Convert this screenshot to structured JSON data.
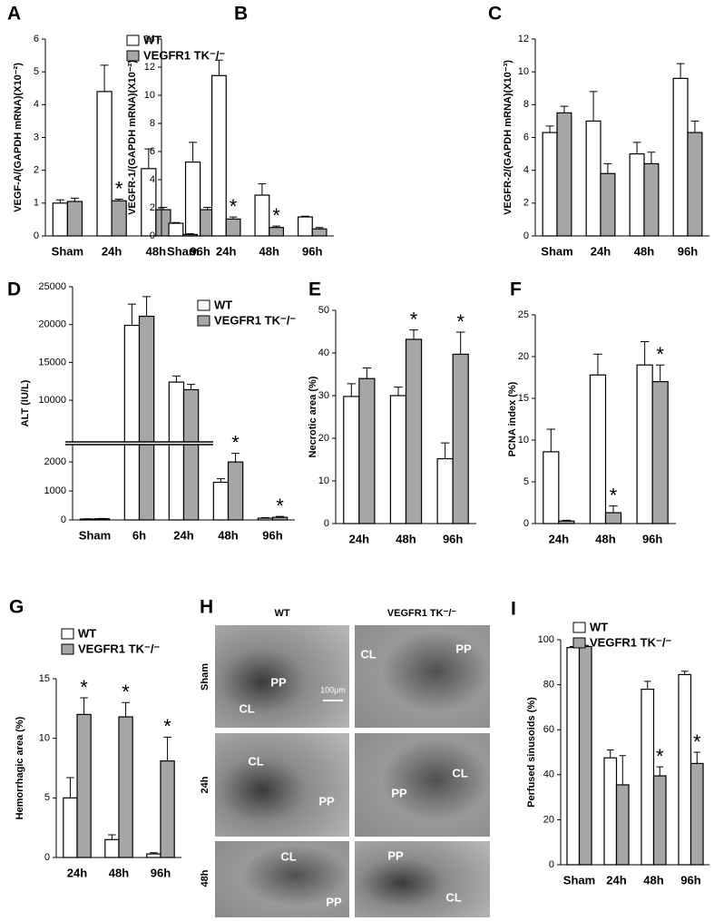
{
  "chart_data": [
    {
      "type": "bar",
      "panel": "A",
      "ylabel": "VEGF-A/(GAPDH mRNA)(X10⁻²)",
      "categories": [
        "Sham",
        "24h",
        "48h",
        "96h"
      ],
      "series": [
        {
          "name": "WT",
          "color": "#ffffff",
          "values": [
            1.0,
            4.4,
            2.05,
            2.25
          ],
          "errors": [
            0.1,
            0.8,
            0.6,
            0.6
          ],
          "significance": [
            null,
            null,
            null,
            null
          ]
        },
        {
          "name": "VEGFR1 TK⁻/⁻",
          "color": "#a6a6a6",
          "values": [
            1.05,
            1.07,
            0.8,
            0.8
          ],
          "errors": [
            0.1,
            0.05,
            0.07,
            0.07
          ],
          "significance": [
            null,
            "*",
            null,
            null
          ]
        }
      ],
      "ylim": [
        0,
        6
      ],
      "yticks": [
        0,
        1,
        2,
        3,
        4,
        5,
        6
      ],
      "legend": "upper-right"
    },
    {
      "type": "bar",
      "panel": "B",
      "ylabel": "VEGFR-1/(GAPDH mRNA)(X10⁻²)",
      "categories": [
        "Sham",
        "24h",
        "48h",
        "96h"
      ],
      "series": [
        {
          "color": "#ffffff",
          "values": [
            0.9,
            11.4,
            2.9,
            1.35
          ],
          "errors": [
            0.05,
            1.1,
            0.8,
            0.05
          ],
          "significance": [
            null,
            null,
            null,
            null
          ]
        },
        {
          "color": "#a6a6a6",
          "values": [
            0.1,
            1.2,
            0.6,
            0.5
          ],
          "errors": [
            0.05,
            0.15,
            0.1,
            0.1
          ],
          "significance": [
            null,
            "*",
            "*",
            null
          ]
        }
      ],
      "ylim": [
        0,
        14
      ],
      "yticks": [
        0,
        2,
        4,
        6,
        8,
        10,
        12,
        14
      ]
    },
    {
      "type": "bar",
      "panel": "C",
      "ylabel": "VEGFR-2/(GAPDH mRNA)(X10⁻³)",
      "categories": [
        "Sham",
        "24h",
        "48h",
        "96h"
      ],
      "series": [
        {
          "color": "#ffffff",
          "values": [
            6.3,
            7.0,
            5.0,
            9.6
          ],
          "errors": [
            0.4,
            1.8,
            0.7,
            0.9
          ],
          "significance": [
            null,
            null,
            null,
            null
          ]
        },
        {
          "color": "#a6a6a6",
          "values": [
            7.5,
            3.8,
            4.4,
            6.3
          ],
          "errors": [
            0.4,
            0.6,
            0.7,
            0.7
          ],
          "significance": [
            null,
            null,
            null,
            null
          ]
        }
      ],
      "ylim": [
        0,
        12
      ],
      "yticks": [
        0,
        2,
        4,
        6,
        8,
        10,
        12
      ]
    },
    {
      "type": "bar",
      "panel": "D",
      "ylabel": "ALT (IU/L)",
      "categories": [
        "Sham",
        "6h",
        "24h",
        "48h",
        "96h"
      ],
      "series": [
        {
          "name": "WT",
          "color": "#ffffff",
          "values": [
            30,
            19900,
            12400,
            1300,
            60
          ],
          "errors": [
            10,
            2800,
            800,
            120,
            20
          ],
          "significance": [
            null,
            null,
            null,
            null,
            null
          ]
        },
        {
          "name": "VEGFR1 TK⁻/⁻",
          "color": "#a6a6a6",
          "values": [
            40,
            21100,
            11400,
            2000,
            90
          ],
          "errors": [
            10,
            2600,
            700,
            300,
            30
          ],
          "significance": [
            null,
            null,
            null,
            "*",
            "*"
          ]
        }
      ],
      "ylim": [
        0,
        25000
      ],
      "ybreak": [
        2600,
        4500
      ],
      "yticks": [
        0,
        1000,
        2000,
        10000,
        15000,
        20000,
        25000
      ],
      "legend": "upper-right"
    },
    {
      "type": "bar",
      "panel": "E",
      "ylabel": "Necrotic area (%)",
      "categories": [
        "24h",
        "48h",
        "96h"
      ],
      "series": [
        {
          "color": "#ffffff",
          "values": [
            29.8,
            30,
            15.2
          ],
          "errors": [
            3,
            2,
            3.7
          ],
          "significance": [
            null,
            null,
            null
          ]
        },
        {
          "color": "#a6a6a6",
          "values": [
            34,
            43.2,
            39.7
          ],
          "errors": [
            2.5,
            2.2,
            5.2
          ],
          "significance": [
            null,
            "*",
            "*"
          ]
        }
      ],
      "ylim": [
        0,
        50
      ],
      "yticks": [
        0,
        10,
        20,
        30,
        40,
        50
      ]
    },
    {
      "type": "bar",
      "panel": "F",
      "ylabel": "PCNA index (%)",
      "categories": [
        "24h",
        "48h",
        "96h"
      ],
      "series": [
        {
          "color": "#ffffff",
          "values": [
            8.6,
            17.8,
            19
          ],
          "errors": [
            2.7,
            2.5,
            2.8
          ],
          "significance": [
            null,
            null,
            null
          ]
        },
        {
          "color": "#a6a6a6",
          "values": [
            0.3,
            1.3,
            17
          ],
          "errors": [
            0.1,
            0.8,
            2
          ],
          "significance": [
            null,
            "*",
            "*"
          ]
        }
      ],
      "ylim": [
        0,
        25
      ],
      "yticks": [
        0,
        5,
        10,
        15,
        20,
        25
      ]
    },
    {
      "type": "bar",
      "panel": "G",
      "ylabel": "Hemorrhagic area (%)",
      "categories": [
        "24h",
        "48h",
        "96h"
      ],
      "series": [
        {
          "name": "WT",
          "color": "#ffffff",
          "values": [
            5,
            1.5,
            0.3
          ],
          "errors": [
            1.7,
            0.4,
            0.1
          ],
          "significance": [
            null,
            null,
            null
          ]
        },
        {
          "name": "VEGFR1 TK⁻/⁻",
          "color": "#a6a6a6",
          "values": [
            12,
            11.8,
            8.1
          ],
          "errors": [
            1.4,
            1.2,
            2
          ],
          "significance": [
            "*",
            "*",
            "*"
          ]
        }
      ],
      "ylim": [
        0,
        15
      ],
      "yticks": [
        0,
        5,
        10,
        15
      ],
      "legend": "upper-left"
    },
    {
      "type": "bar",
      "panel": "I",
      "ylabel": "Perfused sinusoids (%)",
      "categories": [
        "Sham",
        "24h",
        "48h",
        "96h"
      ],
      "series": [
        {
          "name": "WT",
          "color": "#ffffff",
          "values": [
            96.5,
            47.5,
            78,
            84.5
          ],
          "errors": [
            0.5,
            3.5,
            3.5,
            1.5
          ],
          "significance": [
            null,
            null,
            null,
            null
          ]
        },
        {
          "name": "VEGFR1 TK⁻/⁻",
          "color": "#a6a6a6",
          "values": [
            97,
            35.5,
            39.5,
            45
          ],
          "errors": [
            0.5,
            13,
            4,
            5
          ],
          "significance": [
            null,
            null,
            "*",
            "*"
          ]
        }
      ],
      "ylim": [
        0,
        100
      ],
      "yticks": [
        0,
        20,
        40,
        60,
        80,
        100
      ],
      "legend": "upper-left"
    }
  ],
  "image_panel": {
    "panel": "H",
    "columns": [
      "WT",
      "VEGFR1 TK⁻/⁻"
    ],
    "rows": [
      "Sham",
      "24h",
      "48h"
    ],
    "labels": [
      [
        "PP",
        "CL"
      ],
      [
        "CL",
        "PP"
      ],
      [
        "CL",
        "PP"
      ],
      [
        "PP",
        "CL"
      ],
      [
        "CL",
        "PP"
      ],
      [
        "PP",
        "CL"
      ]
    ],
    "scale_bar": "100μm"
  }
}
